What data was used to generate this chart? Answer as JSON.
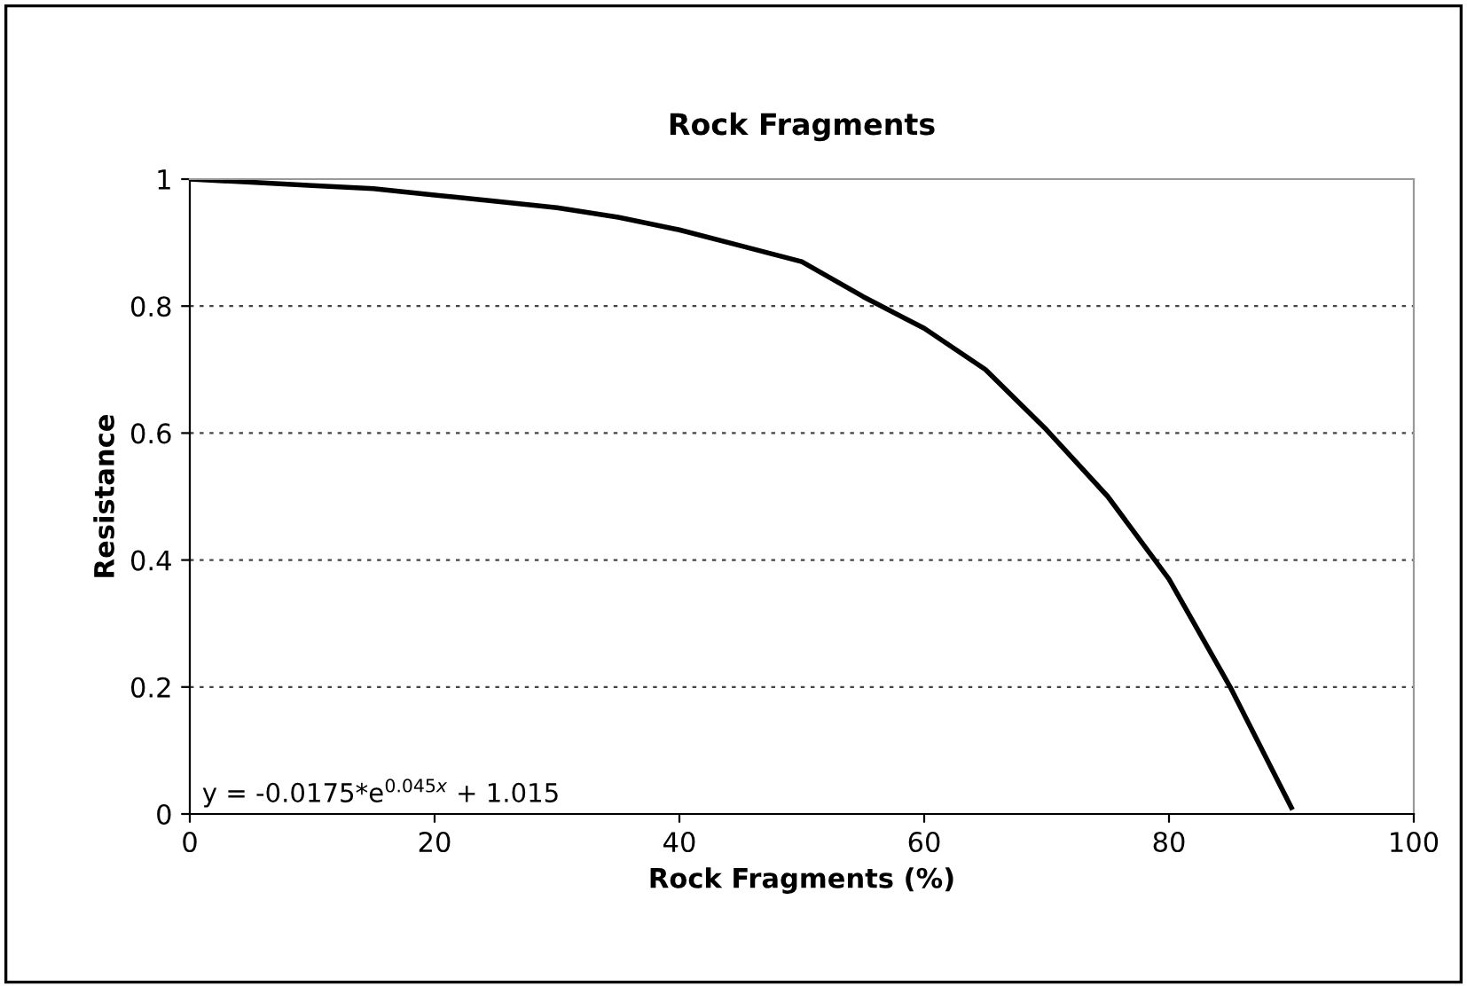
{
  "chart_data": {
    "type": "line",
    "title": "Rock Fragments",
    "xlabel": "Rock Fragments (%)",
    "ylabel": "Resistance",
    "x": [
      0,
      5,
      10,
      15,
      20,
      25,
      30,
      35,
      40,
      45,
      50,
      55,
      60,
      65,
      70,
      75,
      80,
      85,
      90
    ],
    "series": [
      {
        "color": "#000000",
        "values": [
          1.0,
          0.995,
          0.99,
          0.985,
          0.975,
          0.965,
          0.955,
          0.94,
          0.92,
          0.895,
          0.87,
          0.815,
          0.765,
          0.7,
          0.605,
          0.5,
          0.37,
          0.2,
          0.01
        ]
      }
    ],
    "xlim": [
      0,
      100
    ],
    "xticks": [
      0,
      20,
      40,
      60,
      80,
      100
    ],
    "ylim": [
      0,
      1
    ],
    "yticks": [
      0,
      0.2,
      0.4,
      0.6,
      0.8,
      1
    ],
    "grid": "y",
    "line_style": "solid",
    "marker": "none",
    "annotations": [
      "y = -0.0175*e$^{0.045x}$ + 1.015"
    ]
  }
}
